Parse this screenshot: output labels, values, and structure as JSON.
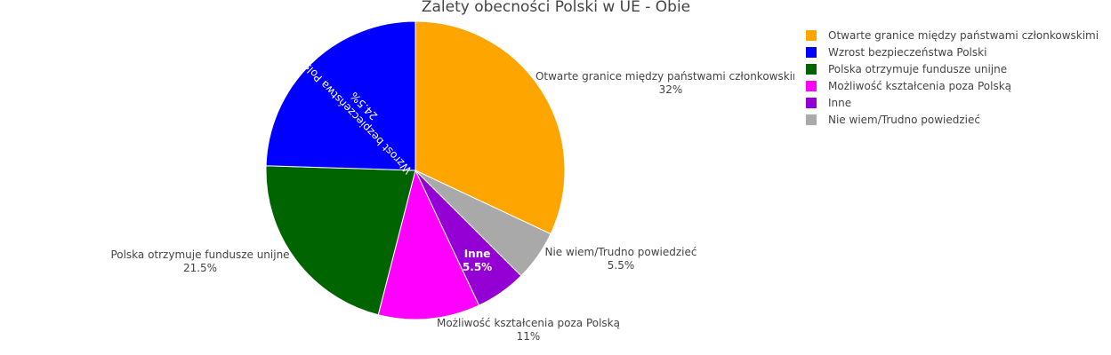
{
  "chart_data": {
    "type": "pie",
    "title": "Zalety obecności Polski w UE - Obie",
    "legend_position": "top-right",
    "slices": [
      {
        "label": "Otwarte granice między państwami członkowskimi",
        "value": 32,
        "text": "32%",
        "color": "#FFA500"
      },
      {
        "label": "Nie wiem/Trudno powiedzieć",
        "value": 5.5,
        "text": "5.5%",
        "color": "#A9A9A9"
      },
      {
        "label": "Inne",
        "value": 5.5,
        "text": "5.5%",
        "color": "#9400D3"
      },
      {
        "label": "Możliwość kształcenia poza Polską",
        "value": 11,
        "text": "11%",
        "color": "#FF00FF"
      },
      {
        "label": "Polska otrzymuje fundusze unijne",
        "value": 21.5,
        "text": "21.5%",
        "color": "#006400"
      },
      {
        "label": "Wzrost bezpieczeństwa Polski",
        "value": 24.5,
        "text": "24.5%",
        "color": "#0000FF"
      }
    ],
    "legend": [
      {
        "label": "Otwarte granice między państwami członkowskimi",
        "color": "#FFA500"
      },
      {
        "label": "Wzrost bezpieczeństwa Polski",
        "color": "#0000FF"
      },
      {
        "label": "Polska otrzymuje fundusze unijne",
        "color": "#006400"
      },
      {
        "label": "Możliwość kształcenia poza Polską",
        "color": "#FF00FF"
      },
      {
        "label": "Inne",
        "color": "#9400D3"
      },
      {
        "label": "Nie wiem/Trudno powiedzieć",
        "color": "#A9A9A9"
      }
    ]
  }
}
